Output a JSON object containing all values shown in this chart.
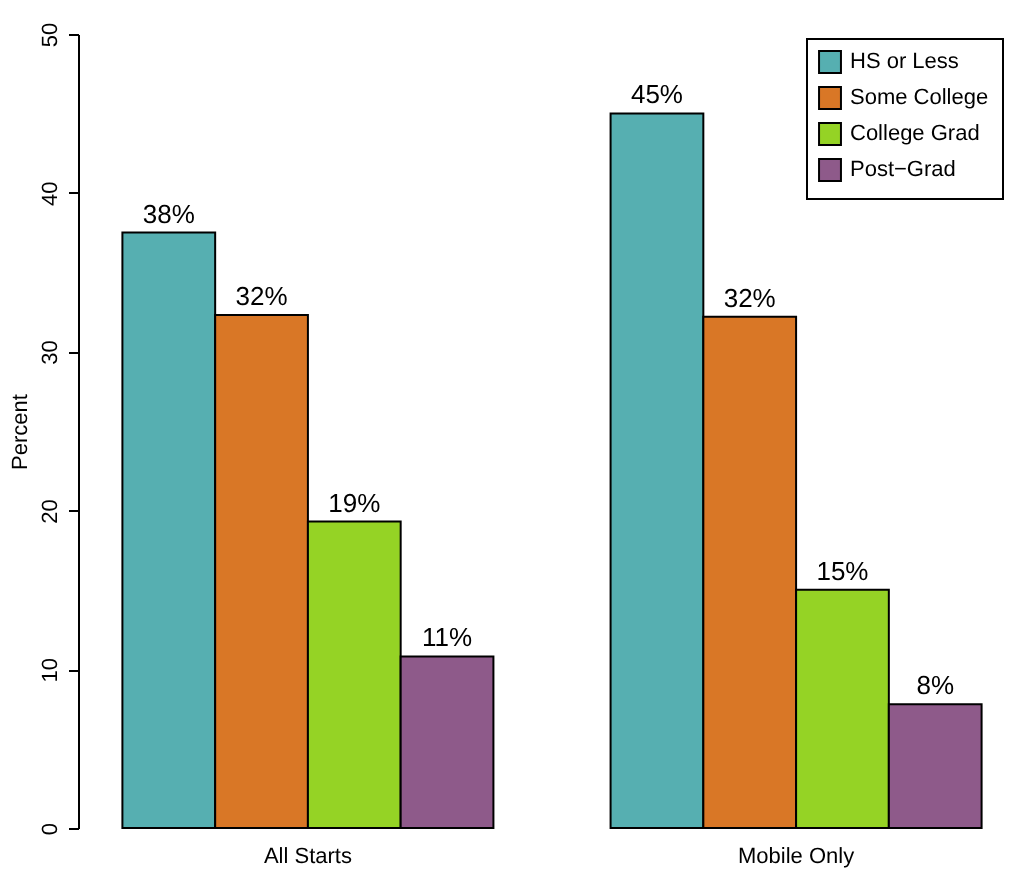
{
  "chart_data": {
    "type": "bar",
    "ylabel": "Percent",
    "categories": [
      "All Starts",
      "Mobile Only"
    ],
    "series": [
      {
        "name": "HS or Less",
        "color": "#56afb1",
        "values": [
          37.5,
          45
        ],
        "value_labels": [
          "38%",
          "45%"
        ]
      },
      {
        "name": "Some College",
        "color": "#d97726",
        "values": [
          32.3,
          32.2
        ],
        "value_labels": [
          "32%",
          "32%"
        ]
      },
      {
        "name": "College Grad",
        "color": "#95d325",
        "values": [
          19.3,
          15
        ],
        "value_labels": [
          "19%",
          "15%"
        ]
      },
      {
        "name": "Post−Grad",
        "color": "#8e5a8a",
        "values": [
          10.8,
          7.8
        ],
        "value_labels": [
          "11%",
          "8%"
        ]
      }
    ],
    "ylim": [
      0,
      50
    ],
    "yticks": [
      0,
      10,
      20,
      30,
      40,
      50
    ],
    "grid": false,
    "legend": "top right"
  }
}
